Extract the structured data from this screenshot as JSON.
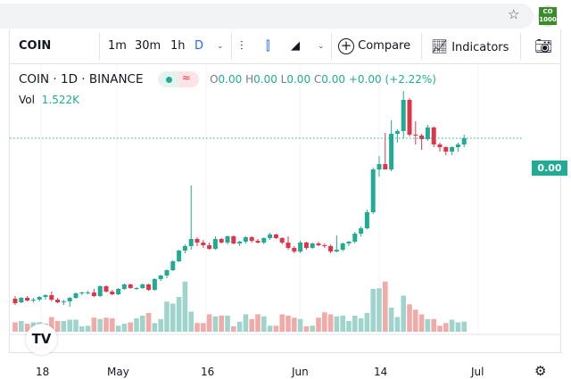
{
  "browser": {
    "star_icon": "star-icon",
    "extension_badge": {
      "line1": "CO",
      "line2": "1000"
    }
  },
  "toolbar": {
    "symbol": "COIN",
    "intervals": [
      "1m",
      "30m",
      "1h",
      "D"
    ],
    "active_interval": "D",
    "compare_label": "Compare",
    "indicators_label": "Indicators"
  },
  "legend": {
    "title": "COIN · 1D · BINANCE",
    "ohlc": {
      "o_label": "O",
      "o": "0.00",
      "h_label": "H",
      "h": "0.00",
      "l_label": "L",
      "l": "0.00",
      "c_label": "C",
      "c": "0.00",
      "change": "+0.00",
      "change_pct": "(+2.22%)"
    },
    "vol_label": "Vol",
    "vol_value": "1.522K"
  },
  "price_label": "0.00",
  "time_axis": [
    "18",
    "May",
    "16",
    "Jun",
    "14",
    "Jul"
  ],
  "colors": {
    "up": "#26a69a",
    "up_dark": "#22ab94",
    "down": "#ef5350",
    "down_dark": "#e0344a",
    "up_vol": "#9fd4cc",
    "down_vol": "#f0aaa8",
    "active": "#2962ff"
  },
  "chart_data": {
    "type": "candlestick",
    "ohlc": [
      [
        25,
        28,
        18,
        20
      ],
      [
        21,
        27,
        20,
        26
      ],
      [
        26,
        28,
        22,
        23
      ],
      [
        23,
        26,
        21,
        24
      ],
      [
        24,
        28,
        22,
        27
      ],
      [
        27,
        30,
        24,
        29
      ],
      [
        29,
        33,
        22,
        24
      ],
      [
        24,
        26,
        20,
        21
      ],
      [
        21,
        24,
        18,
        22
      ],
      [
        22,
        27,
        16,
        26
      ],
      [
        26,
        32,
        25,
        31
      ],
      [
        31,
        33,
        29,
        32
      ],
      [
        32,
        34,
        30,
        32
      ],
      [
        32,
        36,
        27,
        28
      ],
      [
        28,
        40,
        27,
        39
      ],
      [
        39,
        40,
        32,
        33
      ],
      [
        33,
        35,
        29,
        30
      ],
      [
        30,
        37,
        29,
        36
      ],
      [
        36,
        42,
        35,
        41
      ],
      [
        41,
        42,
        36,
        37
      ],
      [
        37,
        38,
        35,
        37
      ],
      [
        37,
        42,
        36,
        41
      ],
      [
        41,
        42,
        34,
        35
      ],
      [
        35,
        48,
        34,
        47
      ],
      [
        47,
        52,
        45,
        51
      ],
      [
        51,
        58,
        48,
        57
      ],
      [
        57,
        68,
        56,
        67
      ],
      [
        67,
        80,
        66,
        79
      ],
      [
        79,
        86,
        76,
        84
      ],
      [
        84,
        152,
        80,
        92
      ],
      [
        92,
        94,
        84,
        88
      ],
      [
        88,
        91,
        82,
        85
      ],
      [
        85,
        88,
        80,
        81
      ],
      [
        81,
        95,
        80,
        92
      ],
      [
        92,
        93,
        87,
        88
      ],
      [
        88,
        96,
        86,
        95
      ],
      [
        95,
        96,
        86,
        87
      ],
      [
        87,
        90,
        84,
        89
      ],
      [
        89,
        95,
        87,
        94
      ],
      [
        94,
        95,
        88,
        90
      ],
      [
        90,
        92,
        87,
        88
      ],
      [
        88,
        94,
        86,
        93
      ],
      [
        93,
        99,
        91,
        97
      ],
      [
        97,
        98,
        92,
        93
      ],
      [
        93,
        94,
        86,
        88
      ],
      [
        88,
        95,
        80,
        82
      ],
      [
        82,
        84,
        76,
        78
      ],
      [
        78,
        90,
        76,
        88
      ],
      [
        88,
        89,
        80,
        82
      ],
      [
        82,
        88,
        81,
        87
      ],
      [
        87,
        89,
        84,
        85
      ],
      [
        85,
        87,
        82,
        84
      ],
      [
        84,
        86,
        76,
        78
      ],
      [
        78,
        96,
        77,
        80
      ],
      [
        80,
        88,
        78,
        87
      ],
      [
        87,
        90,
        84,
        89
      ],
      [
        89,
        100,
        87,
        98
      ],
      [
        98,
        106,
        95,
        104
      ],
      [
        104,
        125,
        103,
        122
      ],
      [
        122,
        172,
        120,
        170
      ],
      [
        170,
        185,
        162,
        176
      ],
      [
        176,
        211,
        170,
        170
      ],
      [
        170,
        225,
        168,
        210
      ],
      [
        210,
        215,
        200,
        213
      ],
      [
        213,
        258,
        205,
        248
      ],
      [
        248,
        250,
        207,
        209
      ],
      [
        209,
        224,
        198,
        208
      ],
      [
        208,
        210,
        192,
        204
      ],
      [
        204,
        220,
        202,
        217
      ],
      [
        217,
        218,
        195,
        198
      ],
      [
        198,
        200,
        190,
        195
      ],
      [
        195,
        196,
        186,
        190
      ],
      [
        190,
        196,
        186,
        195
      ],
      [
        195,
        200,
        190,
        198
      ],
      [
        198,
        209,
        195,
        205
      ]
    ],
    "volume": [
      14,
      16,
      12,
      14,
      14,
      12,
      22,
      16,
      16,
      18,
      18,
      8,
      9,
      21,
      19,
      21,
      20,
      9,
      12,
      14,
      20,
      24,
      28,
      13,
      19,
      45,
      42,
      52,
      75,
      30,
      13,
      13,
      26,
      23,
      24,
      24,
      8,
      15,
      26,
      19,
      26,
      23,
      9,
      9,
      26,
      24,
      21,
      19,
      8,
      9,
      21,
      29,
      26,
      23,
      24,
      16,
      24,
      20,
      28,
      64,
      65,
      75,
      36,
      22,
      54,
      41,
      33,
      26,
      19,
      19,
      9,
      13,
      18,
      14,
      15
    ],
    "last_price": "0.00",
    "x_ticks": [
      "18",
      "May",
      "16",
      "Jun",
      "14",
      "Jul"
    ]
  }
}
